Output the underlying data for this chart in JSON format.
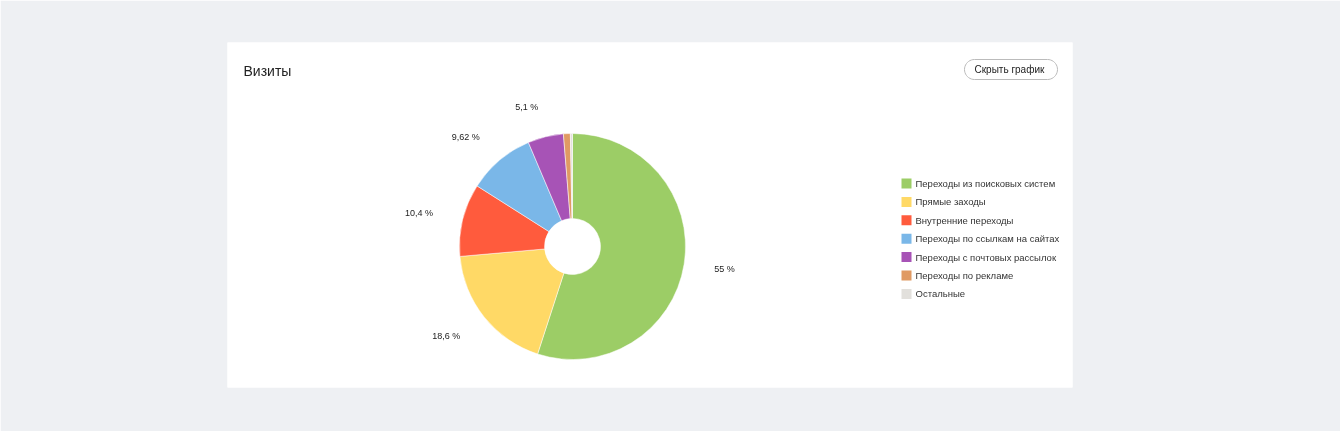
{
  "chart_data": {
    "type": "donut",
    "title": "Визиты",
    "categories": [
      "Переходы из поисковых систем",
      "Прямые заходы",
      "Внутренние переходы",
      "Переходы по ссылкам на сайтах",
      "Переходы с почтовых рассылок",
      "Переходы по рекламе",
      "Остальные"
    ],
    "values": [
      55,
      18.6,
      10.4,
      9.62,
      5.1,
      0.98,
      0.3
    ],
    "colors": [
      "#9ccd66",
      "#ffd966",
      "#ff5b3d",
      "#7ab7e8",
      "#a753b6",
      "#e09a63",
      "#e2e0dc"
    ],
    "value_labels": [
      "55 %",
      "18,6 %",
      "10,4 %",
      "9,62 %",
      "5,1 %",
      null,
      null
    ],
    "legend": "right",
    "annotations": [
      "Скрыть график"
    ]
  }
}
